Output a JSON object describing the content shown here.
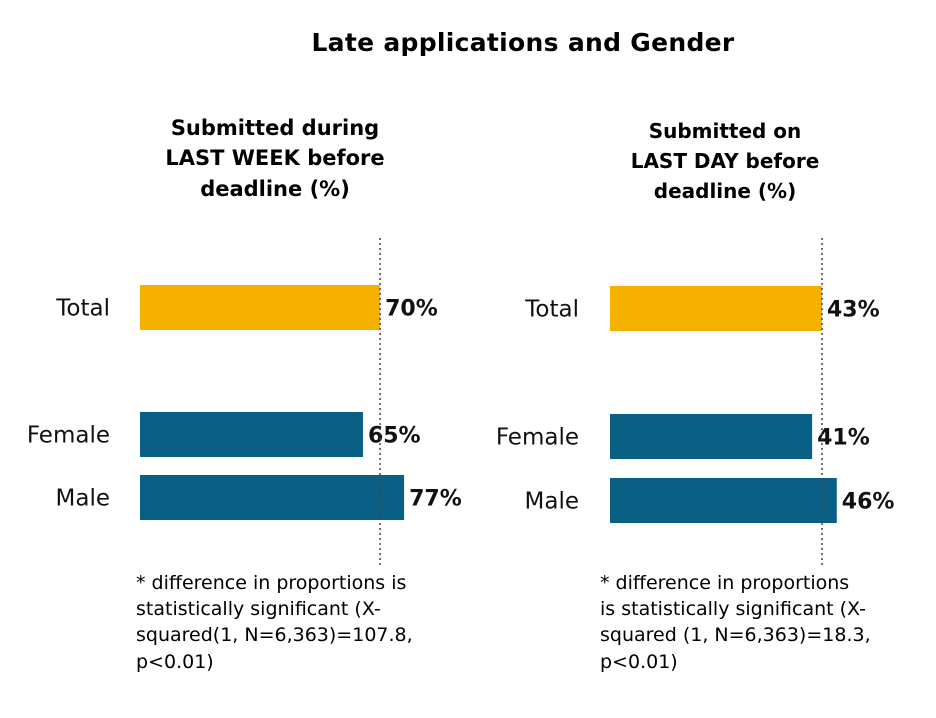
{
  "title": "Late applications and Gender",
  "colors": {
    "total": "#F6B000",
    "gender": "#0A5F84",
    "refline": "#444444"
  },
  "chart_data": [
    {
      "type": "bar",
      "orientation": "horizontal",
      "title_lines": [
        "Submitted during",
        "LAST WEEK before",
        "deadline (%)"
      ],
      "categories": [
        "Total",
        "Female",
        "Male"
      ],
      "values": [
        70,
        65,
        77
      ],
      "value_labels": [
        "70%",
        "65%",
        "77%"
      ],
      "reference_line": 70,
      "note_lines": [
        "* difference in proportions is",
        "statistically significant (X-",
        "squared(1, N=6,363)=107.8,",
        "p<0.01)"
      ]
    },
    {
      "type": "bar",
      "orientation": "horizontal",
      "title_lines": [
        "Submitted on",
        "LAST DAY before",
        "deadline (%)"
      ],
      "categories": [
        "Total",
        "Female",
        "Male"
      ],
      "values": [
        43,
        41,
        46
      ],
      "value_labels": [
        "43%",
        "41%",
        "46%"
      ],
      "reference_line": 43,
      "note_lines": [
        "* difference in proportions",
        "is statistically significant (X-",
        "squared (1, N=6,363)=18.3,",
        "p<0.01)"
      ]
    }
  ]
}
